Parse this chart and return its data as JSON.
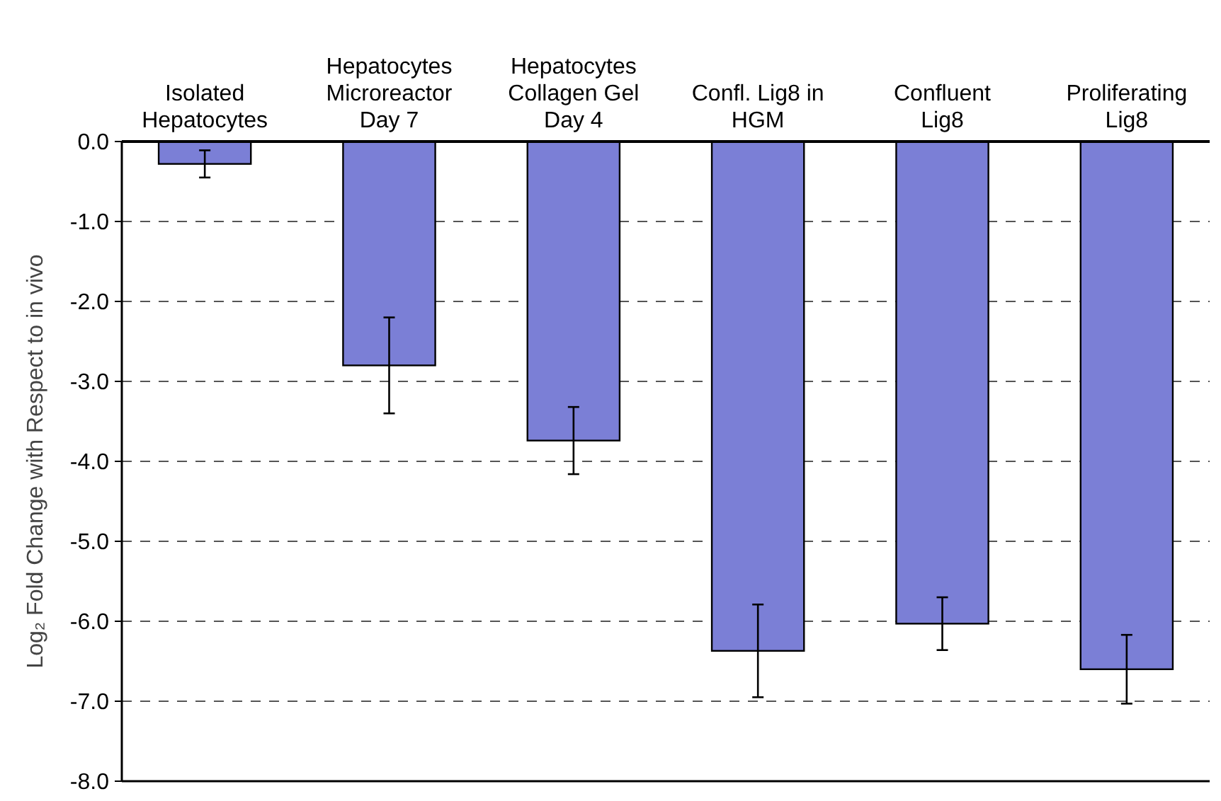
{
  "chart_data": {
    "type": "bar",
    "ylabel": "Log₂ Fold Change with Respect to in vivo",
    "categories": [
      "Isolated\nHepatocytes",
      "Hepatocytes\nMicroreactor\nDay 7",
      "Hepatocytes\nCollagen Gel\nDay 4",
      "Confl. Lig8 in\nHGM",
      "Confluent\nLig8",
      "Proliferating\nLig8"
    ],
    "values": [
      -0.28,
      -2.8,
      -3.74,
      -6.37,
      -6.03,
      -6.6
    ],
    "errors": [
      0.17,
      0.6,
      0.42,
      0.58,
      0.33,
      0.43
    ],
    "color": "#7b7fd6",
    "ylim": [
      -8,
      0
    ],
    "yticks": [
      {
        "value": 0,
        "label": "0.0"
      },
      {
        "value": -1,
        "label": "-1.0"
      },
      {
        "value": -2,
        "label": "-2.0"
      },
      {
        "value": -3,
        "label": "-3.0"
      },
      {
        "value": -4,
        "label": "-4.0"
      },
      {
        "value": -5,
        "label": "-5.0"
      },
      {
        "value": -6,
        "label": "-6.0"
      },
      {
        "value": -7,
        "label": "-7.0"
      },
      {
        "value": -8,
        "label": "-8.0"
      }
    ],
    "grid": "y"
  }
}
